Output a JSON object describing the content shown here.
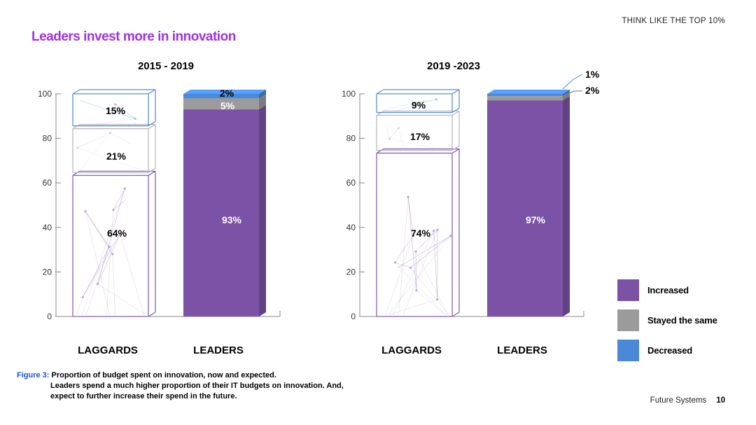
{
  "header": {
    "section": "THINK LIKE THE TOP 10%"
  },
  "headline": "Leaders invest more in innovation",
  "colors": {
    "increased": "#7b52a5",
    "stayed_same": "#9b9b9b",
    "decreased": "#4a88d8",
    "headline": "#a032e6",
    "caption_prefix": "#1a54d9"
  },
  "chart_data": [
    {
      "type": "bar",
      "stacked": true,
      "title": "2015 - 2019",
      "categories": [
        "LAGGARDS",
        "LEADERS"
      ],
      "series": [
        {
          "name": "Increased",
          "values": [
            64,
            93
          ]
        },
        {
          "name": "Stayed the same",
          "values": [
            21,
            5
          ]
        },
        {
          "name": "Decreased",
          "values": [
            15,
            2
          ]
        }
      ],
      "labels": [
        [
          "64%",
          "21%",
          "15%"
        ],
        [
          "93%",
          "5%",
          "2%"
        ]
      ],
      "y_ticks": [
        "0",
        "20",
        "40",
        "60",
        "80",
        "100"
      ],
      "ylim": [
        0,
        100
      ]
    },
    {
      "type": "bar",
      "stacked": true,
      "title": "2019 -2023",
      "categories": [
        "LAGGARDS",
        "LEADERS"
      ],
      "series": [
        {
          "name": "Increased",
          "values": [
            74,
            97
          ]
        },
        {
          "name": "Stayed the same",
          "values": [
            17,
            2
          ]
        },
        {
          "name": "Decreased",
          "values": [
            9,
            1
          ]
        }
      ],
      "labels": [
        [
          "74%",
          "17%",
          "9%"
        ],
        [
          "97%",
          "2%",
          "1%"
        ]
      ],
      "y_ticks": [
        "0",
        "20",
        "40",
        "60",
        "80",
        "100"
      ],
      "ylim": [
        0,
        100
      ]
    }
  ],
  "legend": [
    {
      "label": "Increased",
      "color": "#7b52a5"
    },
    {
      "label": "Stayed the same",
      "color": "#9b9b9b"
    },
    {
      "label": "Decreased",
      "color": "#4a88d8"
    }
  ],
  "caption": {
    "prefix": "Figure 3: ",
    "title": "Proportion of budget spent on innovation, now and expected.",
    "body": "Leaders spend a much higher proportion of their IT budgets on innovation. And, expect to further increase their spend in the future."
  },
  "footer": {
    "text": "Future Systems",
    "page": "10"
  }
}
